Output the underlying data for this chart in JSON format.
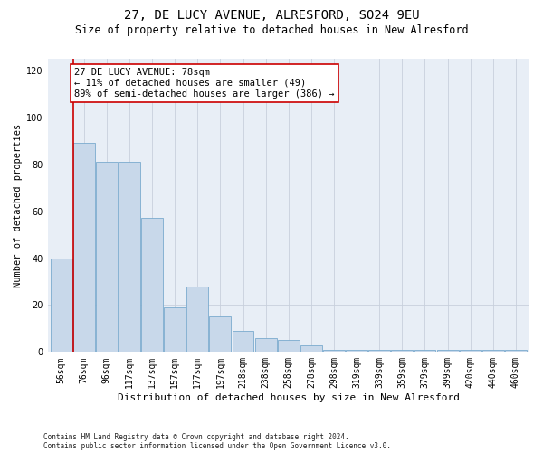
{
  "title1": "27, DE LUCY AVENUE, ALRESFORD, SO24 9EU",
  "title2": "Size of property relative to detached houses in New Alresford",
  "xlabel": "Distribution of detached houses by size in New Alresford",
  "ylabel": "Number of detached properties",
  "categories": [
    "56sqm",
    "76sqm",
    "96sqm",
    "117sqm",
    "137sqm",
    "157sqm",
    "177sqm",
    "197sqm",
    "218sqm",
    "238sqm",
    "258sqm",
    "278sqm",
    "298sqm",
    "319sqm",
    "339sqm",
    "359sqm",
    "379sqm",
    "399sqm",
    "420sqm",
    "440sqm",
    "460sqm"
  ],
  "bar_heights": [
    40,
    89,
    81,
    81,
    57,
    19,
    28,
    15,
    9,
    6,
    5,
    3,
    1,
    1,
    1,
    1,
    1,
    1,
    1,
    1,
    1
  ],
  "bar_color": "#c8d8ea",
  "bar_edge_color": "#7aaace",
  "highlight_line_color": "#cc0000",
  "highlight_bar_index": 1,
  "annotation_text": "27 DE LUCY AVENUE: 78sqm\n← 11% of detached houses are smaller (49)\n89% of semi-detached houses are larger (386) →",
  "annotation_box_color": "#ffffff",
  "annotation_border_color": "#cc0000",
  "ylim": [
    0,
    125
  ],
  "yticks": [
    0,
    20,
    40,
    60,
    80,
    100,
    120
  ],
  "grid_color": "#c8d0dc",
  "bg_color": "#e8eef6",
  "footnote1": "Contains HM Land Registry data © Crown copyright and database right 2024.",
  "footnote2": "Contains public sector information licensed under the Open Government Licence v3.0.",
  "title1_fontsize": 10,
  "title2_fontsize": 8.5,
  "xlabel_fontsize": 8,
  "ylabel_fontsize": 7.5,
  "tick_fontsize": 7,
  "annot_fontsize": 7.5,
  "footnote_fontsize": 5.5
}
